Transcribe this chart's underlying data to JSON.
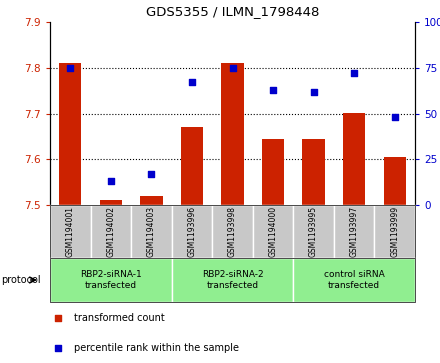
{
  "title": "GDS5355 / ILMN_1798448",
  "samples": [
    "GSM1194001",
    "GSM1194002",
    "GSM1194003",
    "GSM1193996",
    "GSM1193998",
    "GSM1194000",
    "GSM1193995",
    "GSM1193997",
    "GSM1193999"
  ],
  "bar_values": [
    7.81,
    7.51,
    7.52,
    7.67,
    7.81,
    7.645,
    7.645,
    7.7,
    7.605
  ],
  "dot_values": [
    75,
    13,
    17,
    67,
    75,
    63,
    62,
    72,
    48
  ],
  "ylim_left": [
    7.5,
    7.9
  ],
  "ylim_right": [
    0,
    100
  ],
  "yticks_left": [
    7.5,
    7.6,
    7.7,
    7.8,
    7.9
  ],
  "yticks_right": [
    0,
    25,
    50,
    75,
    100
  ],
  "bar_color": "#cc2200",
  "dot_color": "#0000cc",
  "bg_color": "#ffffff",
  "protocol_groups": [
    {
      "label": "RBP2-siRNA-1\ntransfected",
      "start": 0,
      "end": 3,
      "color": "#90ee90"
    },
    {
      "label": "RBP2-siRNA-2\ntransfected",
      "start": 3,
      "end": 6,
      "color": "#90ee90"
    },
    {
      "label": "control siRNA\ntransfected",
      "start": 6,
      "end": 9,
      "color": "#90ee90"
    }
  ],
  "legend_bar_label": "transformed count",
  "legend_dot_label": "percentile rank within the sample",
  "protocol_label": "protocol",
  "tick_label_color_left": "#cc2200",
  "tick_label_color_right": "#0000cc",
  "bottom_gray": "#c8c8c8",
  "grid_yticks": [
    7.6,
    7.7,
    7.8
  ]
}
